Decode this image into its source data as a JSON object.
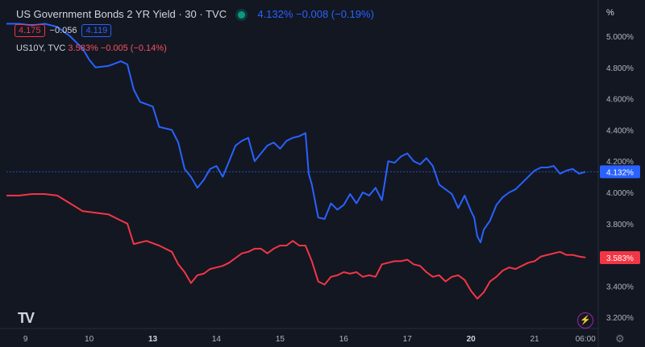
{
  "legend": {
    "title": "US Government Bonds 2 YR Yield · 30 · TVC",
    "value": "4.132%  −0.008 (−0.19%)",
    "bid": "4.175",
    "spread": "−0.056",
    "ask": "4.119"
  },
  "legend2": {
    "symbol": "US10Y, TVC",
    "value": "3.583%  −0.005 (−0.14%)"
  },
  "axis_unit": "%",
  "logo_text": "TV",
  "colors": {
    "background": "#131722",
    "us02y": "#2962ff",
    "us10y": "#f23645"
  },
  "chart_data": {
    "type": "line",
    "x_ticks": [
      {
        "label": "9",
        "t": 0.3,
        "bold": false
      },
      {
        "label": "10",
        "t": 1.3,
        "bold": false
      },
      {
        "label": "13",
        "t": 2.3,
        "bold": true
      },
      {
        "label": "14",
        "t": 3.3,
        "bold": false
      },
      {
        "label": "15",
        "t": 4.3,
        "bold": false
      },
      {
        "label": "16",
        "t": 5.3,
        "bold": false
      },
      {
        "label": "17",
        "t": 6.3,
        "bold": false
      },
      {
        "label": "20",
        "t": 7.3,
        "bold": true
      },
      {
        "label": "21",
        "t": 8.3,
        "bold": false
      },
      {
        "label": "06:00",
        "t": 9.1,
        "bold": false
      }
    ],
    "y_ticks": [
      "3.200%",
      "3.400%",
      "3.600%",
      "3.800%",
      "4.000%",
      "4.200%",
      "4.400%",
      "4.600%",
      "4.800%",
      "5.000%"
    ],
    "ylim": [
      3.16,
      5.16
    ],
    "xlim": [
      0,
      9.3
    ],
    "grid": false,
    "last_labels": [
      {
        "series": 0,
        "text": "4.132%"
      },
      {
        "series": 1,
        "text": "3.583%"
      }
    ],
    "series": [
      {
        "name": "US Government Bonds 2 YR Yield",
        "color": "#2962ff",
        "points": [
          [
            0.0,
            5.08
          ],
          [
            0.2,
            5.08
          ],
          [
            0.4,
            5.07
          ],
          [
            0.6,
            5.08
          ],
          [
            0.8,
            5.06
          ],
          [
            1.0,
            5.0
          ],
          [
            1.2,
            4.92
          ],
          [
            1.3,
            4.85
          ],
          [
            1.4,
            4.8
          ],
          [
            1.6,
            4.81
          ],
          [
            1.8,
            4.84
          ],
          [
            1.9,
            4.82
          ],
          [
            2.0,
            4.66
          ],
          [
            2.1,
            4.58
          ],
          [
            2.3,
            4.55
          ],
          [
            2.4,
            4.42
          ],
          [
            2.6,
            4.4
          ],
          [
            2.7,
            4.32
          ],
          [
            2.8,
            4.15
          ],
          [
            2.9,
            4.1
          ],
          [
            3.0,
            4.03
          ],
          [
            3.1,
            4.08
          ],
          [
            3.2,
            4.15
          ],
          [
            3.3,
            4.17
          ],
          [
            3.4,
            4.1
          ],
          [
            3.5,
            4.2
          ],
          [
            3.6,
            4.3
          ],
          [
            3.7,
            4.33
          ],
          [
            3.8,
            4.35
          ],
          [
            3.9,
            4.2
          ],
          [
            4.0,
            4.25
          ],
          [
            4.1,
            4.3
          ],
          [
            4.2,
            4.32
          ],
          [
            4.3,
            4.28
          ],
          [
            4.4,
            4.33
          ],
          [
            4.5,
            4.35
          ],
          [
            4.6,
            4.36
          ],
          [
            4.7,
            4.38
          ],
          [
            4.75,
            4.12
          ],
          [
            4.8,
            4.05
          ],
          [
            4.9,
            3.84
          ],
          [
            5.0,
            3.83
          ],
          [
            5.1,
            3.93
          ],
          [
            5.2,
            3.89
          ],
          [
            5.3,
            3.92
          ],
          [
            5.4,
            3.99
          ],
          [
            5.5,
            3.93
          ],
          [
            5.6,
            4.0
          ],
          [
            5.7,
            3.98
          ],
          [
            5.8,
            4.03
          ],
          [
            5.9,
            3.95
          ],
          [
            6.0,
            4.2
          ],
          [
            6.1,
            4.19
          ],
          [
            6.2,
            4.23
          ],
          [
            6.3,
            4.25
          ],
          [
            6.4,
            4.2
          ],
          [
            6.5,
            4.18
          ],
          [
            6.6,
            4.22
          ],
          [
            6.7,
            4.17
          ],
          [
            6.8,
            4.05
          ],
          [
            6.9,
            4.02
          ],
          [
            7.0,
            3.99
          ],
          [
            7.1,
            3.9
          ],
          [
            7.2,
            3.98
          ],
          [
            7.3,
            3.88
          ],
          [
            7.35,
            3.84
          ],
          [
            7.4,
            3.72
          ],
          [
            7.45,
            3.68
          ],
          [
            7.5,
            3.76
          ],
          [
            7.6,
            3.82
          ],
          [
            7.7,
            3.92
          ],
          [
            7.8,
            3.97
          ],
          [
            7.9,
            4.0
          ],
          [
            8.0,
            4.02
          ],
          [
            8.1,
            4.06
          ],
          [
            8.2,
            4.1
          ],
          [
            8.3,
            4.14
          ],
          [
            8.4,
            4.16
          ],
          [
            8.5,
            4.16
          ],
          [
            8.6,
            4.17
          ],
          [
            8.7,
            4.12
          ],
          [
            8.8,
            4.14
          ],
          [
            8.9,
            4.15
          ],
          [
            9.0,
            4.12
          ],
          [
            9.1,
            4.132
          ]
        ]
      },
      {
        "name": "US10Y",
        "color": "#f23645",
        "points": [
          [
            0.0,
            3.98
          ],
          [
            0.2,
            3.98
          ],
          [
            0.4,
            3.99
          ],
          [
            0.6,
            3.99
          ],
          [
            0.8,
            3.98
          ],
          [
            1.0,
            3.93
          ],
          [
            1.2,
            3.88
          ],
          [
            1.4,
            3.87
          ],
          [
            1.6,
            3.86
          ],
          [
            1.8,
            3.82
          ],
          [
            1.9,
            3.8
          ],
          [
            2.0,
            3.67
          ],
          [
            2.2,
            3.69
          ],
          [
            2.4,
            3.66
          ],
          [
            2.6,
            3.62
          ],
          [
            2.7,
            3.54
          ],
          [
            2.8,
            3.49
          ],
          [
            2.9,
            3.42
          ],
          [
            3.0,
            3.47
          ],
          [
            3.1,
            3.48
          ],
          [
            3.2,
            3.51
          ],
          [
            3.3,
            3.52
          ],
          [
            3.4,
            3.53
          ],
          [
            3.5,
            3.55
          ],
          [
            3.6,
            3.58
          ],
          [
            3.7,
            3.61
          ],
          [
            3.8,
            3.62
          ],
          [
            3.9,
            3.64
          ],
          [
            4.0,
            3.64
          ],
          [
            4.1,
            3.61
          ],
          [
            4.2,
            3.64
          ],
          [
            4.3,
            3.66
          ],
          [
            4.4,
            3.66
          ],
          [
            4.5,
            3.69
          ],
          [
            4.6,
            3.66
          ],
          [
            4.7,
            3.66
          ],
          [
            4.8,
            3.56
          ],
          [
            4.9,
            3.43
          ],
          [
            5.0,
            3.41
          ],
          [
            5.1,
            3.46
          ],
          [
            5.2,
            3.47
          ],
          [
            5.3,
            3.49
          ],
          [
            5.4,
            3.48
          ],
          [
            5.5,
            3.49
          ],
          [
            5.6,
            3.46
          ],
          [
            5.7,
            3.47
          ],
          [
            5.8,
            3.46
          ],
          [
            5.9,
            3.54
          ],
          [
            6.0,
            3.55
          ],
          [
            6.1,
            3.56
          ],
          [
            6.2,
            3.56
          ],
          [
            6.3,
            3.57
          ],
          [
            6.4,
            3.54
          ],
          [
            6.5,
            3.53
          ],
          [
            6.6,
            3.49
          ],
          [
            6.7,
            3.46
          ],
          [
            6.8,
            3.47
          ],
          [
            6.9,
            3.43
          ],
          [
            7.0,
            3.46
          ],
          [
            7.1,
            3.47
          ],
          [
            7.2,
            3.44
          ],
          [
            7.3,
            3.37
          ],
          [
            7.4,
            3.32
          ],
          [
            7.5,
            3.36
          ],
          [
            7.6,
            3.43
          ],
          [
            7.7,
            3.46
          ],
          [
            7.8,
            3.5
          ],
          [
            7.9,
            3.52
          ],
          [
            8.0,
            3.51
          ],
          [
            8.1,
            3.53
          ],
          [
            8.2,
            3.55
          ],
          [
            8.3,
            3.56
          ],
          [
            8.4,
            3.59
          ],
          [
            8.5,
            3.6
          ],
          [
            8.6,
            3.61
          ],
          [
            8.7,
            3.62
          ],
          [
            8.8,
            3.6
          ],
          [
            8.9,
            3.6
          ],
          [
            9.0,
            3.59
          ],
          [
            9.1,
            3.583
          ]
        ]
      }
    ]
  }
}
